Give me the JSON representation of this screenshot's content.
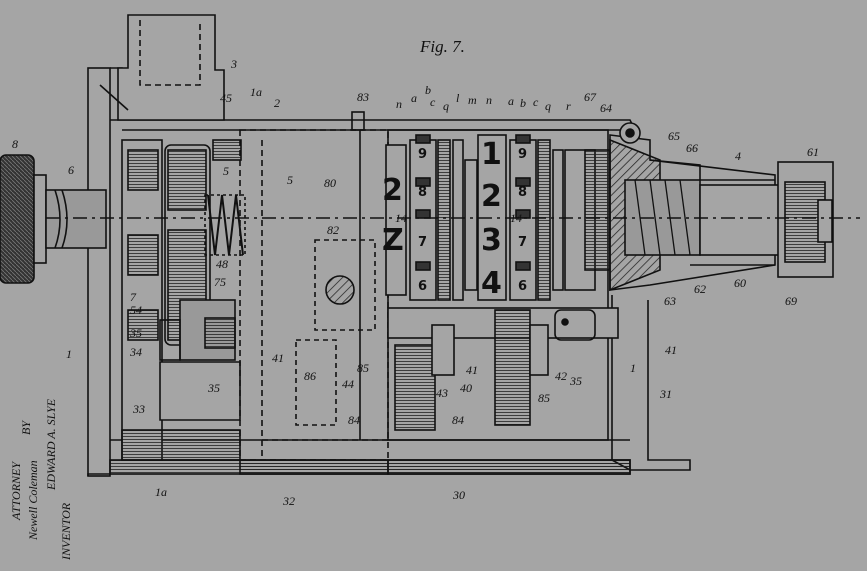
{
  "figure_label": "Fig. 7.",
  "inventor": {
    "name": "EDWARD A. SLYE",
    "title": "INVENTOR",
    "by": "BY",
    "attorney_signature": "Newell Coleman",
    "role": "ATTORNEY"
  },
  "reference_numerals": [
    "1",
    "1a",
    "1a",
    "2",
    "3",
    "4",
    "5",
    "5",
    "6",
    "7",
    "8",
    "14",
    "14",
    "30",
    "31",
    "32",
    "33",
    "34",
    "35",
    "35",
    "35",
    "40",
    "41",
    "41",
    "41",
    "42",
    "43",
    "44",
    "45",
    "48",
    "54",
    "60",
    "61",
    "62",
    "63",
    "64",
    "65",
    "66",
    "67",
    "69",
    "75",
    "80",
    "82",
    "83",
    "84",
    "84",
    "85",
    "85",
    "86",
    "a",
    "b",
    "c",
    "q",
    "l",
    "m",
    "n",
    "a",
    "b",
    "c",
    "q",
    "r",
    "n",
    "1"
  ],
  "counter_digits": {
    "large_wheel": [
      "1",
      "2",
      "3",
      "4"
    ],
    "left_large_wheel": [
      "2",
      "Z"
    ],
    "small_wheel_left": [
      "9",
      "8",
      "7",
      "6"
    ],
    "small_wheel_right": [
      "9",
      "8",
      "7",
      "6"
    ]
  }
}
